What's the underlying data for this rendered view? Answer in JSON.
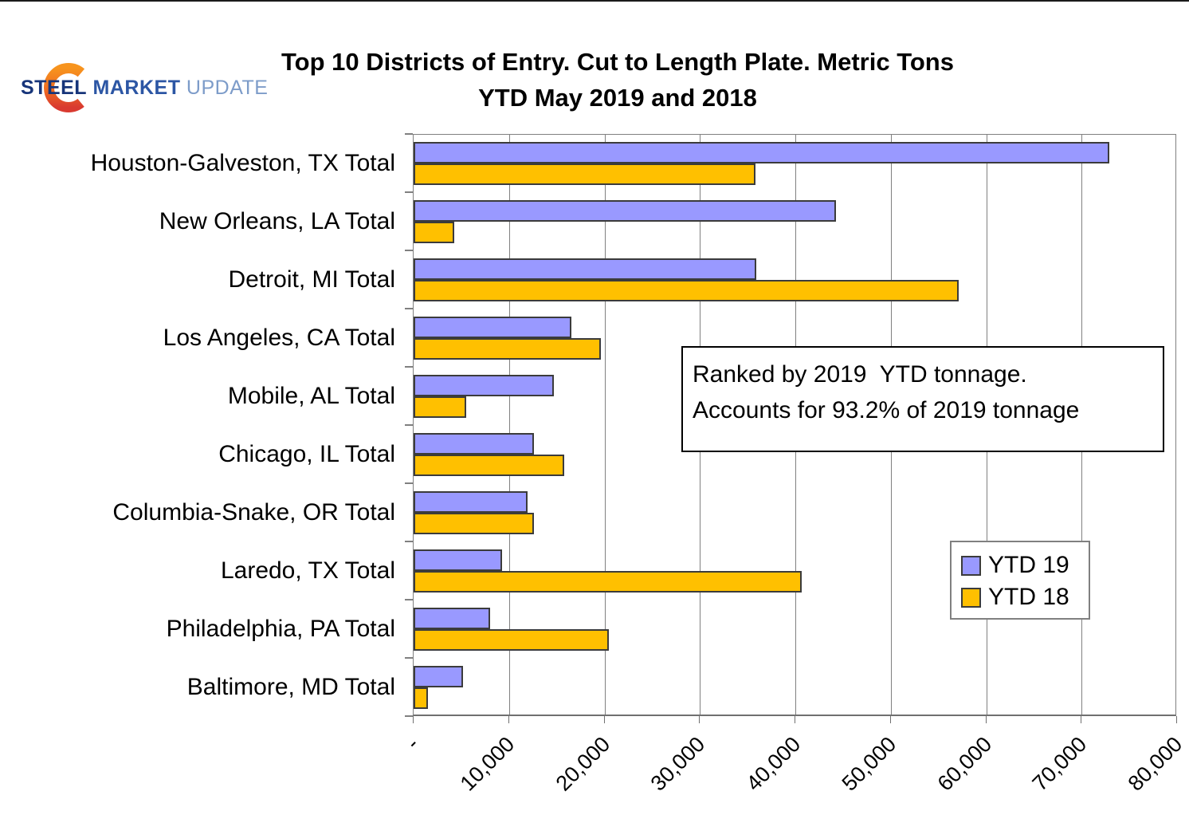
{
  "logo": {
    "steel": "STEEL",
    "market": "MARKET",
    "update": "UPDATE"
  },
  "title": {
    "line1": "Top 10 Districts of Entry. Cut to Length Plate. Metric Tons",
    "line2": "YTD May 2019 and 2018"
  },
  "annotation": {
    "line1": "Ranked by 2019  YTD tonnage.",
    "line2": "Accounts for 93.2% of 2019 tonnage"
  },
  "legend": [
    {
      "label": "YTD 19",
      "color": "#9999FF"
    },
    {
      "label": "YTD 18",
      "color": "#FFC000"
    }
  ],
  "colors": {
    "ytd19": "#9999FF",
    "ytd18": "#FFC000",
    "bar_border": "#3b3b3b",
    "grid": "#808080"
  },
  "chart_data": {
    "type": "bar",
    "orientation": "horizontal",
    "title": "Top 10 Districts of Entry. Cut to Length Plate. Metric Tons YTD May 2019 and 2018",
    "categories": [
      "Houston-Galveston, TX Total",
      "New Orleans, LA Total",
      "Detroit, MI Total",
      "Los Angeles, CA Total",
      "Mobile, AL Total",
      "Chicago, IL Total",
      "Columbia-Snake, OR Total",
      "Laredo, TX Total",
      "Philadelphia, PA Total",
      "Baltimore, MD Total"
    ],
    "series": [
      {
        "name": "YTD 19",
        "color": "#9999FF",
        "values": [
          72900,
          44300,
          35900,
          16500,
          14700,
          12600,
          11900,
          9300,
          8000,
          5200
        ]
      },
      {
        "name": "YTD 18",
        "color": "#FFC000",
        "values": [
          35800,
          4300,
          57100,
          19600,
          5500,
          15800,
          12600,
          40700,
          20500,
          1500
        ]
      }
    ],
    "xlim": [
      0,
      80000
    ],
    "x_tick_step": 10000,
    "x_tick_labels": [
      "-",
      "10,000",
      "20,000",
      "30,000",
      "40,000",
      "50,000",
      "60,000",
      "70,000",
      "80,000"
    ],
    "grid": true,
    "legend_position": "inside-right-lower",
    "units": "Metric Tons"
  }
}
